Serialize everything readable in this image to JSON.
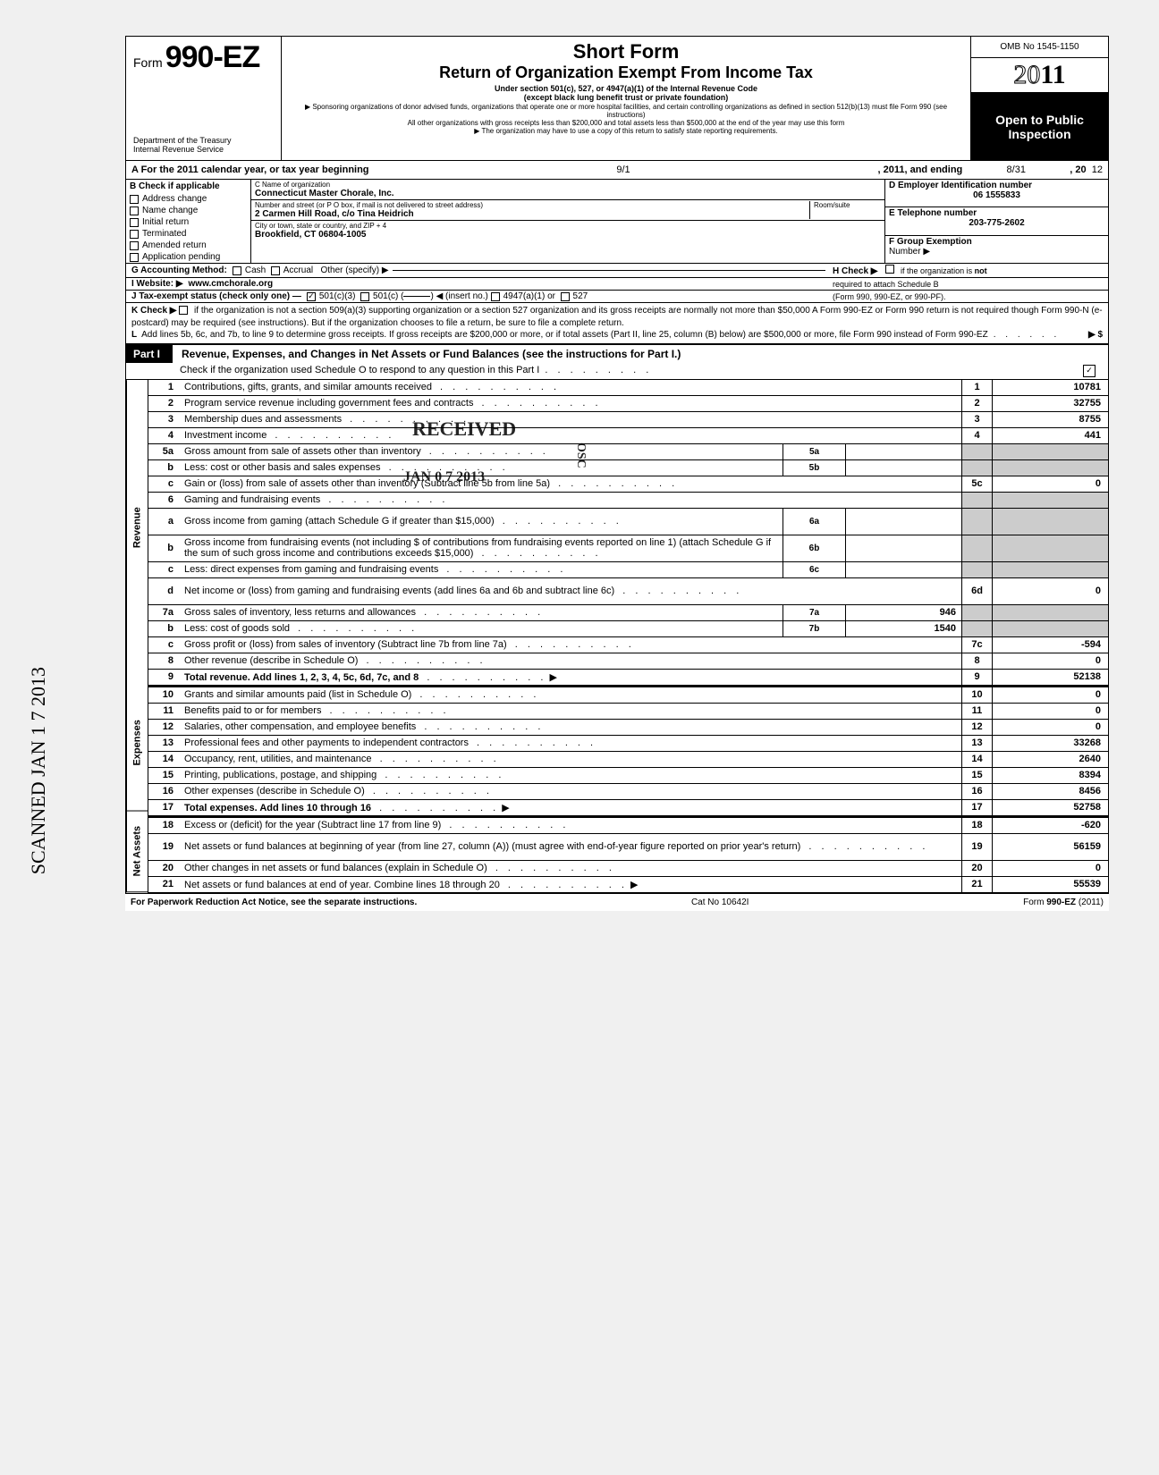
{
  "colors": {
    "black": "#000000",
    "white": "#ffffff",
    "shade": "#cccccc",
    "page_bg": "#f0f0f0"
  },
  "header": {
    "form_label": "Form",
    "form_number": "990-EZ",
    "dept1": "Department of the Treasury",
    "dept2": "Internal Revenue Service",
    "title_main": "Short Form",
    "title_sub": "Return of Organization Exempt From Income Tax",
    "under1": "Under section 501(c), 527, or 4947(a)(1) of the Internal Revenue Code",
    "under2": "(except black lung benefit trust or private foundation)",
    "sponsor": "▶ Sponsoring organizations of donor advised funds, organizations that operate one or more hospital facilities, and certain controlling organizations as defined in section 512(b)(13) must file Form 990 (see instructions)",
    "allother": "All other organizations with gross receipts less than $200,000 and total assets less than $500,000 at the end of the year may use this form",
    "mayhave": "▶ The organization may have to use a copy of this return to satisfy state reporting requirements.",
    "omb": "OMB No  1545-1150",
    "year_outline": "20",
    "year_bold": "11",
    "open1": "Open to Public",
    "open2": "Inspection"
  },
  "lineA": {
    "prefix": "A  For the 2011 calendar year, or tax year beginning",
    "begin": "9/1",
    "mid": ", 2011, and ending",
    "end": "8/31",
    "suffix": ", 20",
    "yy": "12"
  },
  "sectionB": {
    "check_label": "B  Check if applicable",
    "checks": [
      "Address change",
      "Name change",
      "Initial return",
      "Terminated",
      "Amended return",
      "Application pending"
    ],
    "c_label": "C  Name of organization",
    "c_val": "Connecticut Master Chorale, Inc.",
    "addr_label": "Number and street (or P O  box, if mail is not delivered to street address)",
    "room_label": "Room/suite",
    "addr_val": "2 Carmen Hill Road, c/o Tina Heidrich",
    "city_label": "City or town, state or country, and ZIP + 4",
    "city_val": "Brookfield, CT 06804-1005",
    "d_label": "D Employer Identification number",
    "d_val": "06 1555833",
    "e_label": "E  Telephone number",
    "e_val": "203-775-2602",
    "f_label": "F  Group Exemption",
    "f_label2": "Number ▶"
  },
  "gij": {
    "g_label": "G  Accounting Method:",
    "g_cash": "Cash",
    "g_accrual": "Accrual",
    "g_other": "Other (specify) ▶",
    "h_label": "H  Check ▶",
    "h_text": "if the organization is not required to attach Schedule B (Form 990, 990-EZ, or 990-PF).",
    "i_label": "I   Website: ▶",
    "i_val": "www.cmchorale.org",
    "j_label": "J  Tax-exempt status (check only one) —",
    "j_501c3": "501(c)(3)",
    "j_501c": "501(c) (",
    "j_insert": ") ◀ (insert no.)",
    "j_4947": "4947(a)(1) or",
    "j_527": "527"
  },
  "kl": {
    "k_label": "K  Check ▶",
    "k_text": "if the organization is not a section 509(a)(3) supporting organization or a section 527 organization and its gross receipts are normally not more than $50,000  A Form 990-EZ or Form 990 return is not required though Form 990-N (e-postcard) may be required (see instructions). But if the organization chooses to file a return, be sure to file a complete return.",
    "l_text": "L  Add lines 5b, 6c, and 7b, to line 9 to determine gross receipts. If gross receipts are $200,000 or more, or if total assets (Part II, line 25, column (B) below) are $500,000 or more, file Form 990 instead of Form 990-EZ",
    "l_arrow": "▶  $"
  },
  "part1": {
    "tab": "Part I",
    "title": "Revenue, Expenses, and Changes in Net Assets or Fund Balances (see the instructions for Part I.)",
    "sub": "Check if the organization used Schedule O to respond to any question in this Part I",
    "check_mark": "✓"
  },
  "side_labels": {
    "revenue": "Revenue",
    "expenses": "Expenses",
    "netassets": "Net Assets"
  },
  "stamps": {
    "received": "RECEIVED",
    "date": "JAN 0 7 2013",
    "osc": "OSC"
  },
  "lines": [
    {
      "no": "1",
      "desc": "Contributions, gifts, grants, and similar amounts received",
      "num": "1",
      "val": "10781"
    },
    {
      "no": "2",
      "desc": "Program service revenue including government fees and contracts",
      "num": "2",
      "val": "32755"
    },
    {
      "no": "3",
      "desc": "Membership dues and assessments",
      "num": "3",
      "val": "8755"
    },
    {
      "no": "4",
      "desc": "Investment income",
      "num": "4",
      "val": "441"
    },
    {
      "no": "5a",
      "desc": "Gross amount from sale of assets other than inventory",
      "sub": "5a",
      "subval": ""
    },
    {
      "no": "b",
      "desc": "Less: cost or other basis and sales expenses",
      "sub": "5b",
      "subval": ""
    },
    {
      "no": "c",
      "desc": "Gain or (loss) from sale of assets other than inventory (Subtract line 5b from line 5a)",
      "num": "5c",
      "val": "0"
    },
    {
      "no": "6",
      "desc": "Gaming and fundraising events"
    },
    {
      "no": "a",
      "desc": "Gross income from gaming (attach Schedule G if greater than $15,000)",
      "sub": "6a",
      "subval": "",
      "tall": true
    },
    {
      "no": "b",
      "desc": "Gross income from fundraising events (not including  $                     of contributions from fundraising events reported on line 1) (attach Schedule G if the sum of such gross income and contributions exceeds $15,000)",
      "sub": "6b",
      "subval": "",
      "tall": true
    },
    {
      "no": "c",
      "desc": "Less: direct expenses from gaming and fundraising events",
      "sub": "6c",
      "subval": ""
    },
    {
      "no": "d",
      "desc": "Net income or (loss) from gaming and fundraising events (add lines 6a and 6b and subtract line 6c)",
      "num": "6d",
      "val": "0",
      "tall": true
    },
    {
      "no": "7a",
      "desc": "Gross sales of inventory, less returns and allowances",
      "sub": "7a",
      "subval": "946"
    },
    {
      "no": "b",
      "desc": "Less: cost of goods sold",
      "sub": "7b",
      "subval": "1540"
    },
    {
      "no": "c",
      "desc": "Gross profit or (loss) from sales of inventory (Subtract line 7b from line 7a)",
      "num": "7c",
      "val": "-594"
    },
    {
      "no": "8",
      "desc": "Other revenue (describe in Schedule O)",
      "num": "8",
      "val": "0"
    },
    {
      "no": "9",
      "desc": "Total revenue. Add lines 1, 2, 3, 4, 5c, 6d, 7c, and 8",
      "num": "9",
      "val": "52138",
      "bold": true,
      "arrow": true
    }
  ],
  "exp_lines": [
    {
      "no": "10",
      "desc": "Grants and similar amounts paid (list in Schedule O)",
      "num": "10",
      "val": "0"
    },
    {
      "no": "11",
      "desc": "Benefits paid to or for members",
      "num": "11",
      "val": "0"
    },
    {
      "no": "12",
      "desc": "Salaries, other compensation, and employee benefits",
      "num": "12",
      "val": "0"
    },
    {
      "no": "13",
      "desc": "Professional fees and other payments to independent contractors",
      "num": "13",
      "val": "33268"
    },
    {
      "no": "14",
      "desc": "Occupancy, rent, utilities, and maintenance",
      "num": "14",
      "val": "2640"
    },
    {
      "no": "15",
      "desc": "Printing, publications, postage, and shipping",
      "num": "15",
      "val": "8394"
    },
    {
      "no": "16",
      "desc": "Other expenses (describe in Schedule O)",
      "num": "16",
      "val": "8456"
    },
    {
      "no": "17",
      "desc": "Total expenses. Add lines 10 through 16",
      "num": "17",
      "val": "52758",
      "bold": true,
      "arrow": true
    }
  ],
  "na_lines": [
    {
      "no": "18",
      "desc": "Excess or (deficit) for the year (Subtract line 17 from line 9)",
      "num": "18",
      "val": "-620"
    },
    {
      "no": "19",
      "desc": "Net assets or fund balances at beginning of year (from line 27, column (A)) (must agree with end-of-year figure reported on prior year's return)",
      "num": "19",
      "val": "56159",
      "tall": true
    },
    {
      "no": "20",
      "desc": "Other changes in net assets or fund balances (explain in Schedule O)",
      "num": "20",
      "val": "0"
    },
    {
      "no": "21",
      "desc": "Net assets or fund balances at end of year. Combine lines 18 through 20",
      "num": "21",
      "val": "55539",
      "arrow": true
    }
  ],
  "footer": {
    "left": "For Paperwork Reduction Act Notice, see the separate instructions.",
    "mid": "Cat  No  10642I",
    "right": "Form 990-EZ (2011)"
  },
  "sidescan": "SCANNED JAN 1 7 2013"
}
